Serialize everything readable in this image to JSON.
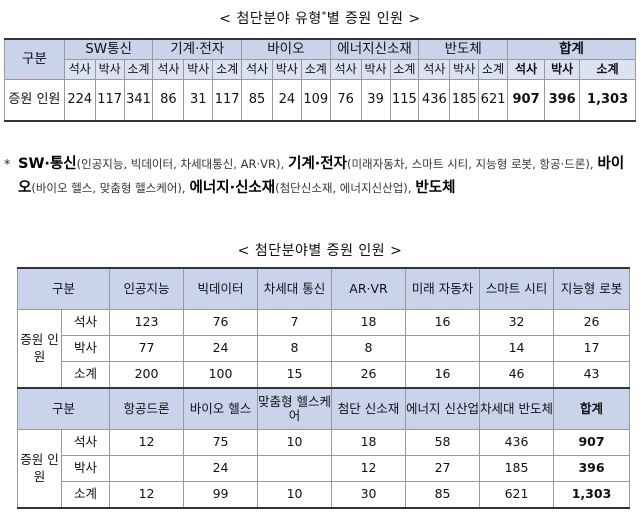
{
  "title1": {
    "main": "< 첨단분야 유형",
    "sup": "*",
    "rest": "별 증원 인원 >"
  },
  "table1": {
    "corner": "구분",
    "groups": [
      "SW통신",
      "기계·전자",
      "바이오",
      "에너지신소재",
      "반도체",
      "합계"
    ],
    "subheaders": [
      "석사",
      "박사",
      "소계"
    ],
    "row_label": "증원 인원",
    "values": [
      "224",
      "117",
      "341",
      "86",
      "31",
      "117",
      "85",
      "24",
      "109",
      "76",
      "39",
      "115",
      "436",
      "185",
      "621",
      "907",
      "396",
      "1,303"
    ]
  },
  "note": {
    "asterisk": "*",
    "items": [
      {
        "name": "SW·통신",
        "detail": "(인공지능, 빅데이터, 차세대통신, AR·VR),"
      },
      {
        "name": "기계·전자",
        "detail": "(미래자동차, 스마트 시티, 지능형 로봇, 항공·드론),"
      },
      {
        "name": "바이오",
        "detail": "(바이오 헬스, 맞춤형 헬스케어),"
      },
      {
        "name": "에너지·신소재",
        "detail": "(첨단신소재, 에너지신산업),"
      },
      {
        "name": "반도체",
        "detail": ""
      }
    ]
  },
  "title2": "< 첨단분야별 증원 인원 >",
  "table2": {
    "corner": "구분",
    "side_label": "증원 인원",
    "row_labels": [
      "석사",
      "박사",
      "소계"
    ],
    "block1": {
      "headers": [
        "인공지능",
        "빅데이터",
        "차세대 통신",
        "AR·VR",
        "미래 자동차",
        "스마트 시티",
        "지능형 로봇"
      ],
      "rows": [
        [
          "123",
          "76",
          "7",
          "18",
          "16",
          "32",
          "26"
        ],
        [
          "77",
          "24",
          "8",
          "8",
          "",
          "14",
          "17"
        ],
        [
          "200",
          "100",
          "15",
          "26",
          "16",
          "46",
          "43"
        ]
      ]
    },
    "block2": {
      "headers": [
        "항공드론",
        "바이오 헬스",
        "맞춤형 헬스케어",
        "첨단 신소재",
        "에너지 신산업",
        "차세대 반도체",
        "합계"
      ],
      "rows": [
        [
          "12",
          "75",
          "10",
          "18",
          "58",
          "436",
          "907"
        ],
        [
          "",
          "24",
          "",
          "12",
          "27",
          "185",
          "396"
        ],
        [
          "12",
          "99",
          "10",
          "30",
          "85",
          "621",
          "1,303"
        ]
      ]
    }
  }
}
